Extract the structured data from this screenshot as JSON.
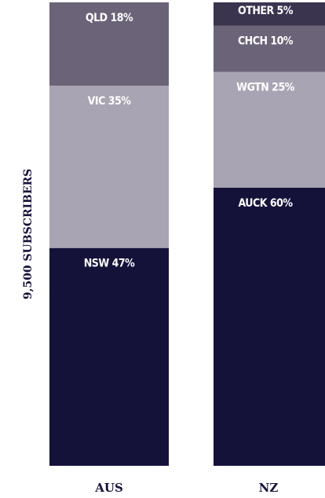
{
  "chart_data": {
    "type": "stacked_bar",
    "ylabel": "9,500 SUBSCRIBERS",
    "categories": [
      "AUS",
      "NZ"
    ],
    "ylim": [
      0,
      100
    ],
    "stacks": [
      {
        "values": [
          47,
          35,
          18
        ],
        "value_labels": [
          "NSW 47%",
          "VIC 35%",
          "QLD 18%"
        ],
        "colors": [
          "#15123a",
          "#a9a4b3",
          "#6b6377"
        ]
      },
      {
        "values": [
          60,
          25,
          10,
          5
        ],
        "value_labels": [
          "AUCK 60%",
          "WGTN 25%",
          "CHCH 10%",
          "OTHER 5%"
        ],
        "colors": [
          "#15123a",
          "#a9a4b3",
          "#6b6377",
          "#3b344f"
        ]
      }
    ]
  }
}
